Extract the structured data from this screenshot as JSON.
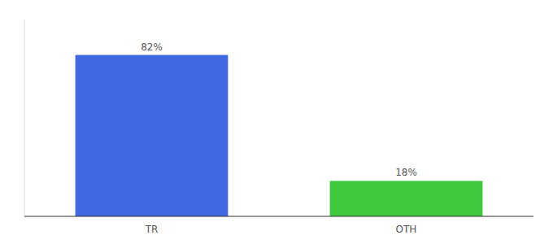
{
  "chart_data": {
    "type": "bar",
    "categories": [
      "TR",
      "OTH"
    ],
    "values": [
      82,
      18
    ],
    "value_labels": [
      "82%",
      "18%"
    ],
    "colors": [
      "#4169e1",
      "#3dc83d"
    ],
    "ylim": [
      0,
      100
    ],
    "grid": false,
    "data_labels": true,
    "tick_labels": "x"
  }
}
